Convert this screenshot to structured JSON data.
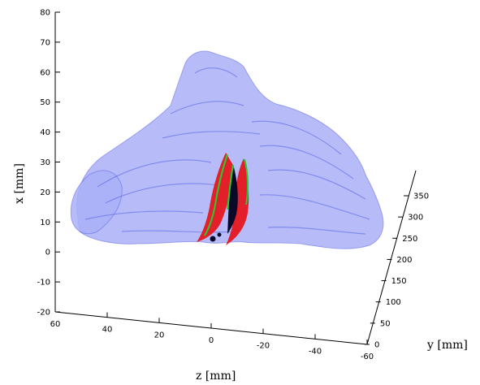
{
  "chart_data": {
    "type": "scatter",
    "subtype": "3d-volume-render",
    "title": "",
    "xlabel": "z [mm]",
    "ylabel": "x [mm]",
    "zlabel": "y [mm]",
    "axes": {
      "x_vertical": {
        "label": "x [mm]",
        "ticks": [
          80,
          70,
          60,
          50,
          40,
          30,
          20,
          10,
          0,
          -10,
          -20
        ],
        "range": [
          -20,
          80
        ]
      },
      "z_bottom": {
        "label": "z [mm]",
        "ticks": [
          60,
          40,
          20,
          0,
          -20,
          -40,
          -60
        ],
        "range": [
          60,
          -60
        ]
      },
      "y_right": {
        "label": "y [mm]",
        "ticks": [
          0,
          50,
          100,
          150,
          200,
          250,
          300,
          350
        ],
        "range": [
          0,
          350
        ]
      }
    },
    "grid": false,
    "legend": "none",
    "surfaces": [
      {
        "name": "outer volume",
        "color": "#aab0f8"
      },
      {
        "name": "red region",
        "color": "#e3202a"
      },
      {
        "name": "green outline",
        "color": "#22cc33"
      },
      {
        "name": "core",
        "color": "#0a0a28"
      }
    ]
  },
  "colors": {
    "volume_fill": "#aab0f8",
    "volume_texture": "#5a64e6",
    "red": "#e3202a",
    "green": "#22cc33",
    "dark": "#0a0a28"
  }
}
